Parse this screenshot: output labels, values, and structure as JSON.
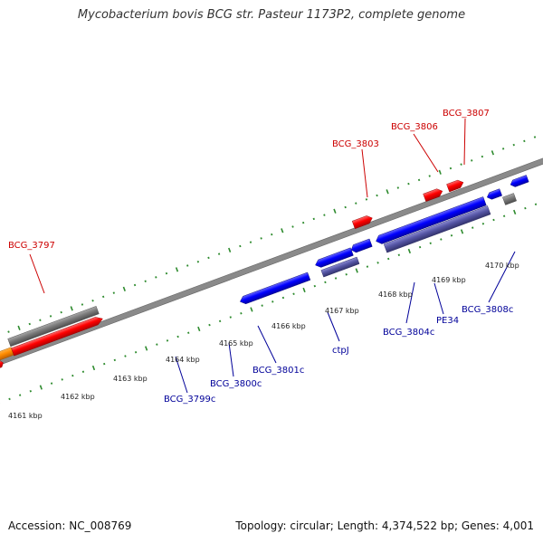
{
  "title": "Mycobacterium bovis BCG str. Pasteur 1173P2, complete genome",
  "footer": {
    "accession": "Accession: NC_008769",
    "summary": "Topology: circular; Length: 4,374,522 bp; Genes: 4,001"
  },
  "colors": {
    "forward_label": "#cc0000",
    "reverse_label": "#000099",
    "forward_gene": "#ff0000",
    "reverse_gene": "#0000ff",
    "pseudo_gene": "#777777",
    "rna_gene": "#5050a0",
    "other_gene": "#ff8c00",
    "backbone": "#8a8a8a",
    "tick": "#2e8b2e"
  },
  "scale_labels": [
    "4161 kbp",
    "4162 kbp",
    "4163 kbp",
    "4164 kbp",
    "4165 kbp",
    "4166 kbp",
    "4167 kbp",
    "4168 kbp",
    "4169 kbp",
    "4170 kbp"
  ],
  "forward_labels": [
    "BCG_3797",
    "BCG_3803",
    "BCG_3806",
    "BCG_3807"
  ],
  "reverse_labels": [
    "BCG_3799c",
    "BCG_3800c",
    "BCG_3801c",
    "ctpJ",
    "BCG_3804c",
    "PE34",
    "BCG_3808c"
  ]
}
